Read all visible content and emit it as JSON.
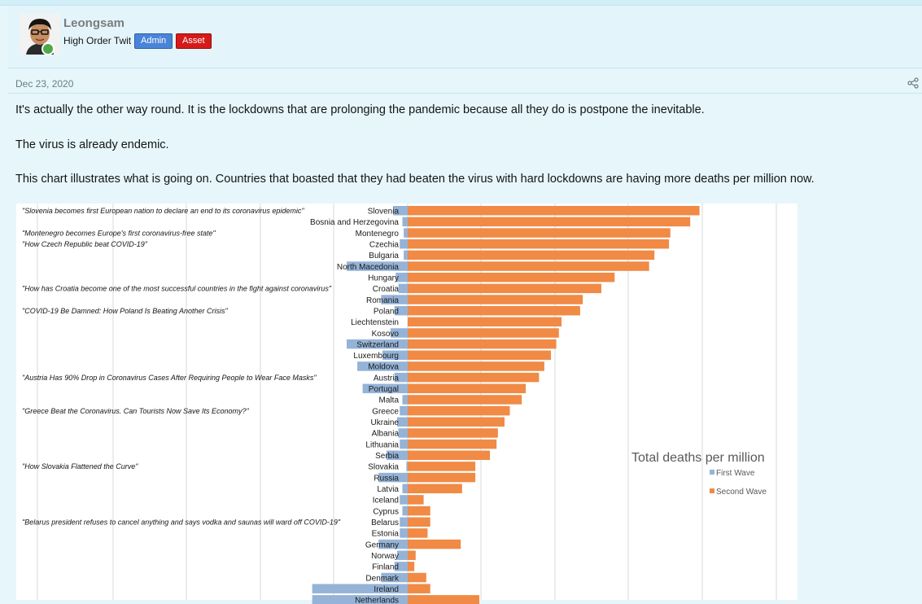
{
  "user": {
    "name": "Leongsam",
    "title": "High Order Twit",
    "badges": [
      "Admin",
      "Asset"
    ]
  },
  "post": {
    "date": "Dec 23, 2020",
    "paragraphs": [
      "It's actually the other way round. It is the lockdowns that are prolonging the pandemic because all they do is postpone the inevitable.",
      "The virus is already endemic.",
      "This chart illustrates what is going on. Countries that boasted that they had beaten the virus with hard lockdowns are having more deaths per million now."
    ]
  },
  "colors": {
    "first_wave": "#95b3d7",
    "second_wave": "#f08a45",
    "admin_badge": "#4a84d8",
    "asset_badge": "#d51a1a"
  },
  "chart_data": {
    "type": "bar",
    "title": "Total deaths per million",
    "legend_position": "right",
    "series": [
      {
        "name": "First Wave"
      },
      {
        "name": "Second Wave"
      }
    ],
    "categories": [
      "Slovenia",
      "Bosnia and Herzegovina",
      "Montenegro",
      "Czechia",
      "Bulgaria",
      "North Macedonia",
      "Hungary",
      "Croatia",
      "Romania",
      "Poland",
      "Liechtenstein",
      "Kosovo",
      "Switzerland",
      "Luxembourg",
      "Moldova",
      "Austria",
      "Portugal",
      "Malta",
      "Greece",
      "Ukraine",
      "Albania",
      "Lithuania",
      "Serbia",
      "Slovakia",
      "Russia",
      "Latvia",
      "Iceland",
      "Cyprus",
      "Belarus",
      "Estonia",
      "Germany",
      "Norway",
      "Finland",
      "Denmark",
      "Ireland",
      "Netherlands"
    ],
    "first_wave": [
      55,
      20,
      15,
      30,
      15,
      230,
      45,
      35,
      100,
      50,
      0,
      65,
      230,
      95,
      190,
      50,
      170,
      20,
      30,
      40,
      35,
      30,
      80,
      5,
      110,
      20,
      30,
      20,
      30,
      30,
      110,
      40,
      50,
      100,
      360,
      360
    ],
    "second_wave": [
      1100,
      1065,
      990,
      985,
      930,
      910,
      780,
      730,
      660,
      650,
      580,
      570,
      560,
      540,
      515,
      495,
      445,
      430,
      385,
      365,
      340,
      335,
      310,
      255,
      255,
      205,
      60,
      85,
      85,
      75,
      200,
      30,
      25,
      70,
      85,
      270
    ],
    "annotations": [
      {
        "country": "Slovenia",
        "text": "\"Slovenia becomes first European nation to declare an end to its coronavirus epidemic\""
      },
      {
        "country": "Montenegro",
        "text": "\"Montenegro becomes Europe's first coronavirus-free state\""
      },
      {
        "country": "Czechia",
        "text": "\"How Czech Republic beat COVID-19\""
      },
      {
        "country": "Croatia",
        "text": "\"How has Croatia become one of the most successful countries in the fight against coronavirus\""
      },
      {
        "country": "Poland",
        "text": "\"COVID-19 Be Damned: How Poland Is Beating Another Crisis\""
      },
      {
        "country": "Austria",
        "text": "\"Austria Has 90% Drop in Coronavirus Cases After Requiring People to Wear Face Masks\""
      },
      {
        "country": "Greece",
        "text": "\"Greece Beat the Coronavirus. Can Tourists Now Save Its Economy?\""
      },
      {
        "country": "Slovakia",
        "text": "\"How Slovakia Flattened the Curve\""
      },
      {
        "country": "Belarus",
        "text": "\"Belarus president refuses to cancel anything and says vodka and saunas will ward off COVID-19\""
      }
    ]
  }
}
